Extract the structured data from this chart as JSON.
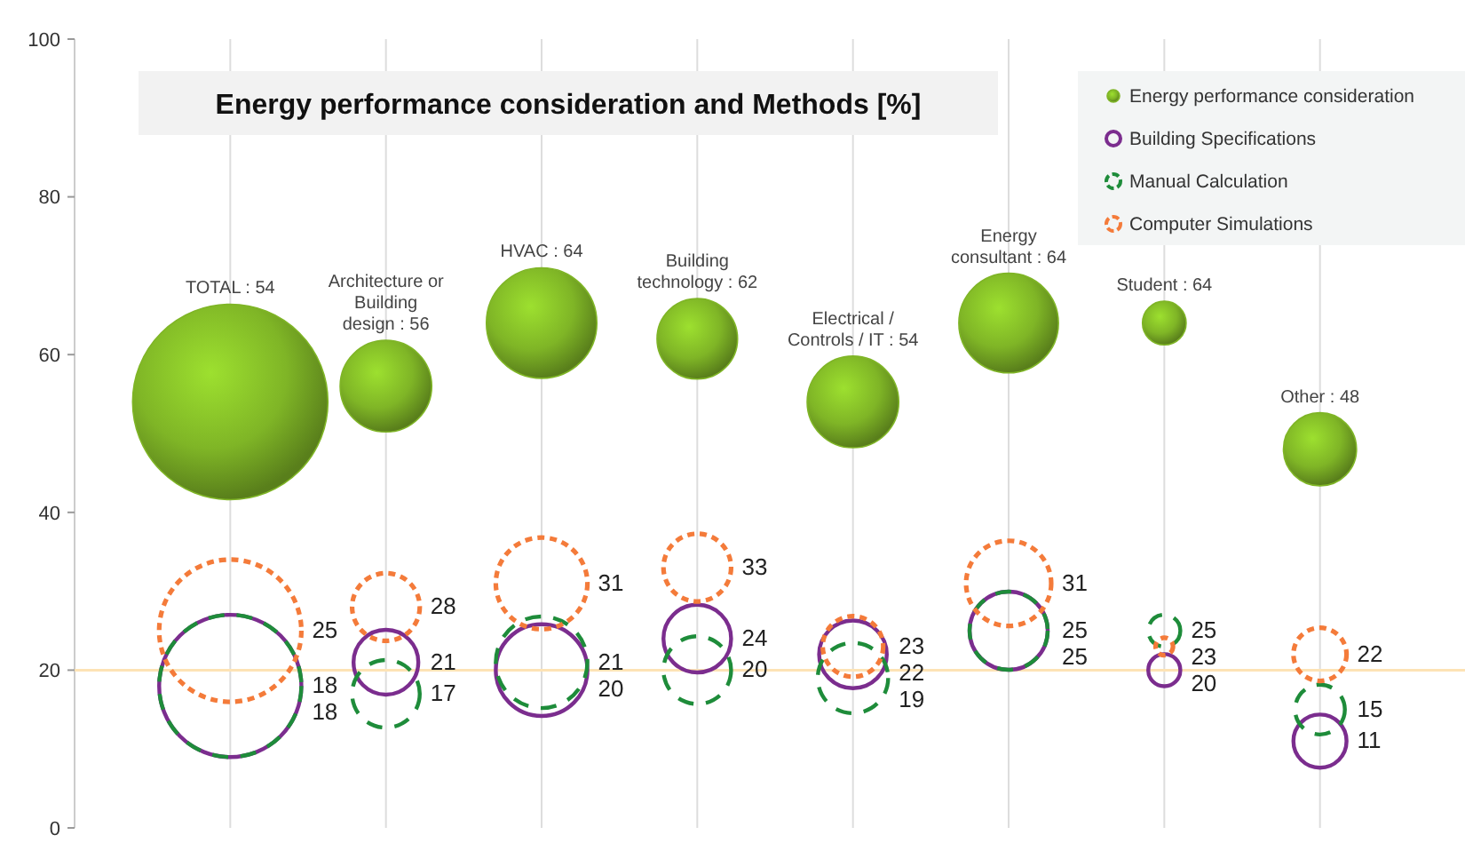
{
  "chart_data": {
    "type": "bubble",
    "title": "Energy performance consideration and Methods [%]",
    "categories": [
      null,
      null,
      null,
      null,
      null,
      null,
      null,
      null
    ],
    "ylim": [
      0,
      100
    ],
    "yticks": [
      0,
      20,
      40,
      60,
      80,
      100
    ],
    "grid": "x",
    "legend": "top right",
    "ref_lines": [
      {
        "axis": "y",
        "value": 20,
        "color": "#fde3b5"
      }
    ],
    "series": [
      {
        "name": "Energy performance consideration",
        "color": "#7fb526",
        "values": [
          54,
          56,
          64,
          62,
          54,
          64,
          64,
          48
        ],
        "sizes": [
          1,
          0.22,
          0.32,
          0.17,
          0.22,
          0.26,
          0.05,
          0.14
        ],
        "value_labels": [
          "TOTAL : 54",
          "Architecture or Building design : 56",
          "HVAC : 64",
          "Building technology : 62",
          "Electrical / Controls / IT : 54",
          "Energy consultant : 64",
          "Student : 64",
          "Other : 48"
        ]
      },
      {
        "name": "Building Specifications",
        "color": "#7b2d8e",
        "line_style": "solid",
        "values": [
          18,
          21,
          20,
          24,
          22,
          25,
          20,
          11
        ],
        "sizes": [
          0.53,
          0.11,
          0.22,
          0.12,
          0.12,
          0.16,
          0.027,
          0.074
        ],
        "value_labels": [
          "18",
          "21",
          "20",
          "24",
          "22",
          "25",
          "20",
          "11"
        ]
      },
      {
        "name": "Manual Calculation",
        "color": "#1e8c3a",
        "line_style": "dashed",
        "values": [
          18,
          17,
          21,
          20,
          19,
          25,
          25,
          15
        ],
        "sizes": [
          0.53,
          0.12,
          0.22,
          0.12,
          0.13,
          0.16,
          0.027,
          0.065
        ],
        "value_labels": [
          "18",
          "17",
          "21",
          "20",
          "19",
          "25",
          "25",
          "15"
        ]
      },
      {
        "name": "Computer Simulations",
        "color": "#f47b3a",
        "line_style": "dotted",
        "values": [
          25,
          28,
          31,
          33,
          23,
          31,
          23,
          22
        ],
        "sizes": [
          0.53,
          0.12,
          0.22,
          0.12,
          0.096,
          0.19,
          0.008,
          0.074
        ],
        "value_labels": [
          "25",
          "28",
          "31",
          "33",
          "23",
          "31",
          "23",
          "22"
        ]
      }
    ]
  }
}
